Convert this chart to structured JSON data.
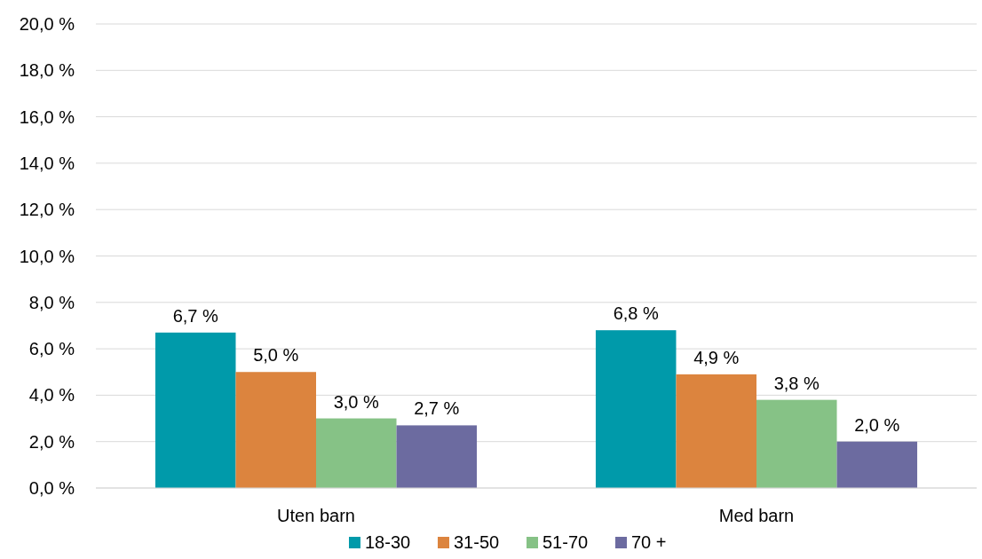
{
  "chart_data": {
    "type": "bar",
    "categories": [
      "Uten barn",
      "Med barn"
    ],
    "series": [
      {
        "name": "18-30",
        "color": "#009aaa",
        "values": [
          6.7,
          6.8
        ],
        "value_labels": [
          "6,7 %",
          "6,8 %"
        ]
      },
      {
        "name": "31-50",
        "color": "#dc843e",
        "values": [
          5.0,
          4.9
        ],
        "value_labels": [
          "5,0 %",
          "4,9 %"
        ]
      },
      {
        "name": "51-70",
        "color": "#86c286",
        "values": [
          3.0,
          3.8
        ],
        "value_labels": [
          "3,0 %",
          "3,8 %"
        ]
      },
      {
        "name": "70 +",
        "color": "#6c6ba0",
        "values": [
          2.7,
          2.0
        ],
        "value_labels": [
          "2,7 %",
          "2,0 %"
        ]
      }
    ],
    "ylim": [
      0,
      20
    ],
    "yticks": [
      {
        "value": 0,
        "label": "0,0 %"
      },
      {
        "value": 2,
        "label": "2,0 %"
      },
      {
        "value": 4,
        "label": "4,0 %"
      },
      {
        "value": 6,
        "label": "6,0 %"
      },
      {
        "value": 8,
        "label": "8,0 %"
      },
      {
        "value": 10,
        "label": "10,0 %"
      },
      {
        "value": 12,
        "label": "12,0 %"
      },
      {
        "value": 14,
        "label": "14,0 %"
      },
      {
        "value": 16,
        "label": "16,0 %"
      },
      {
        "value": 18,
        "label": "18,0 %"
      },
      {
        "value": 20,
        "label": "20,0 %"
      }
    ],
    "grid": "y",
    "legend": "bottom"
  }
}
